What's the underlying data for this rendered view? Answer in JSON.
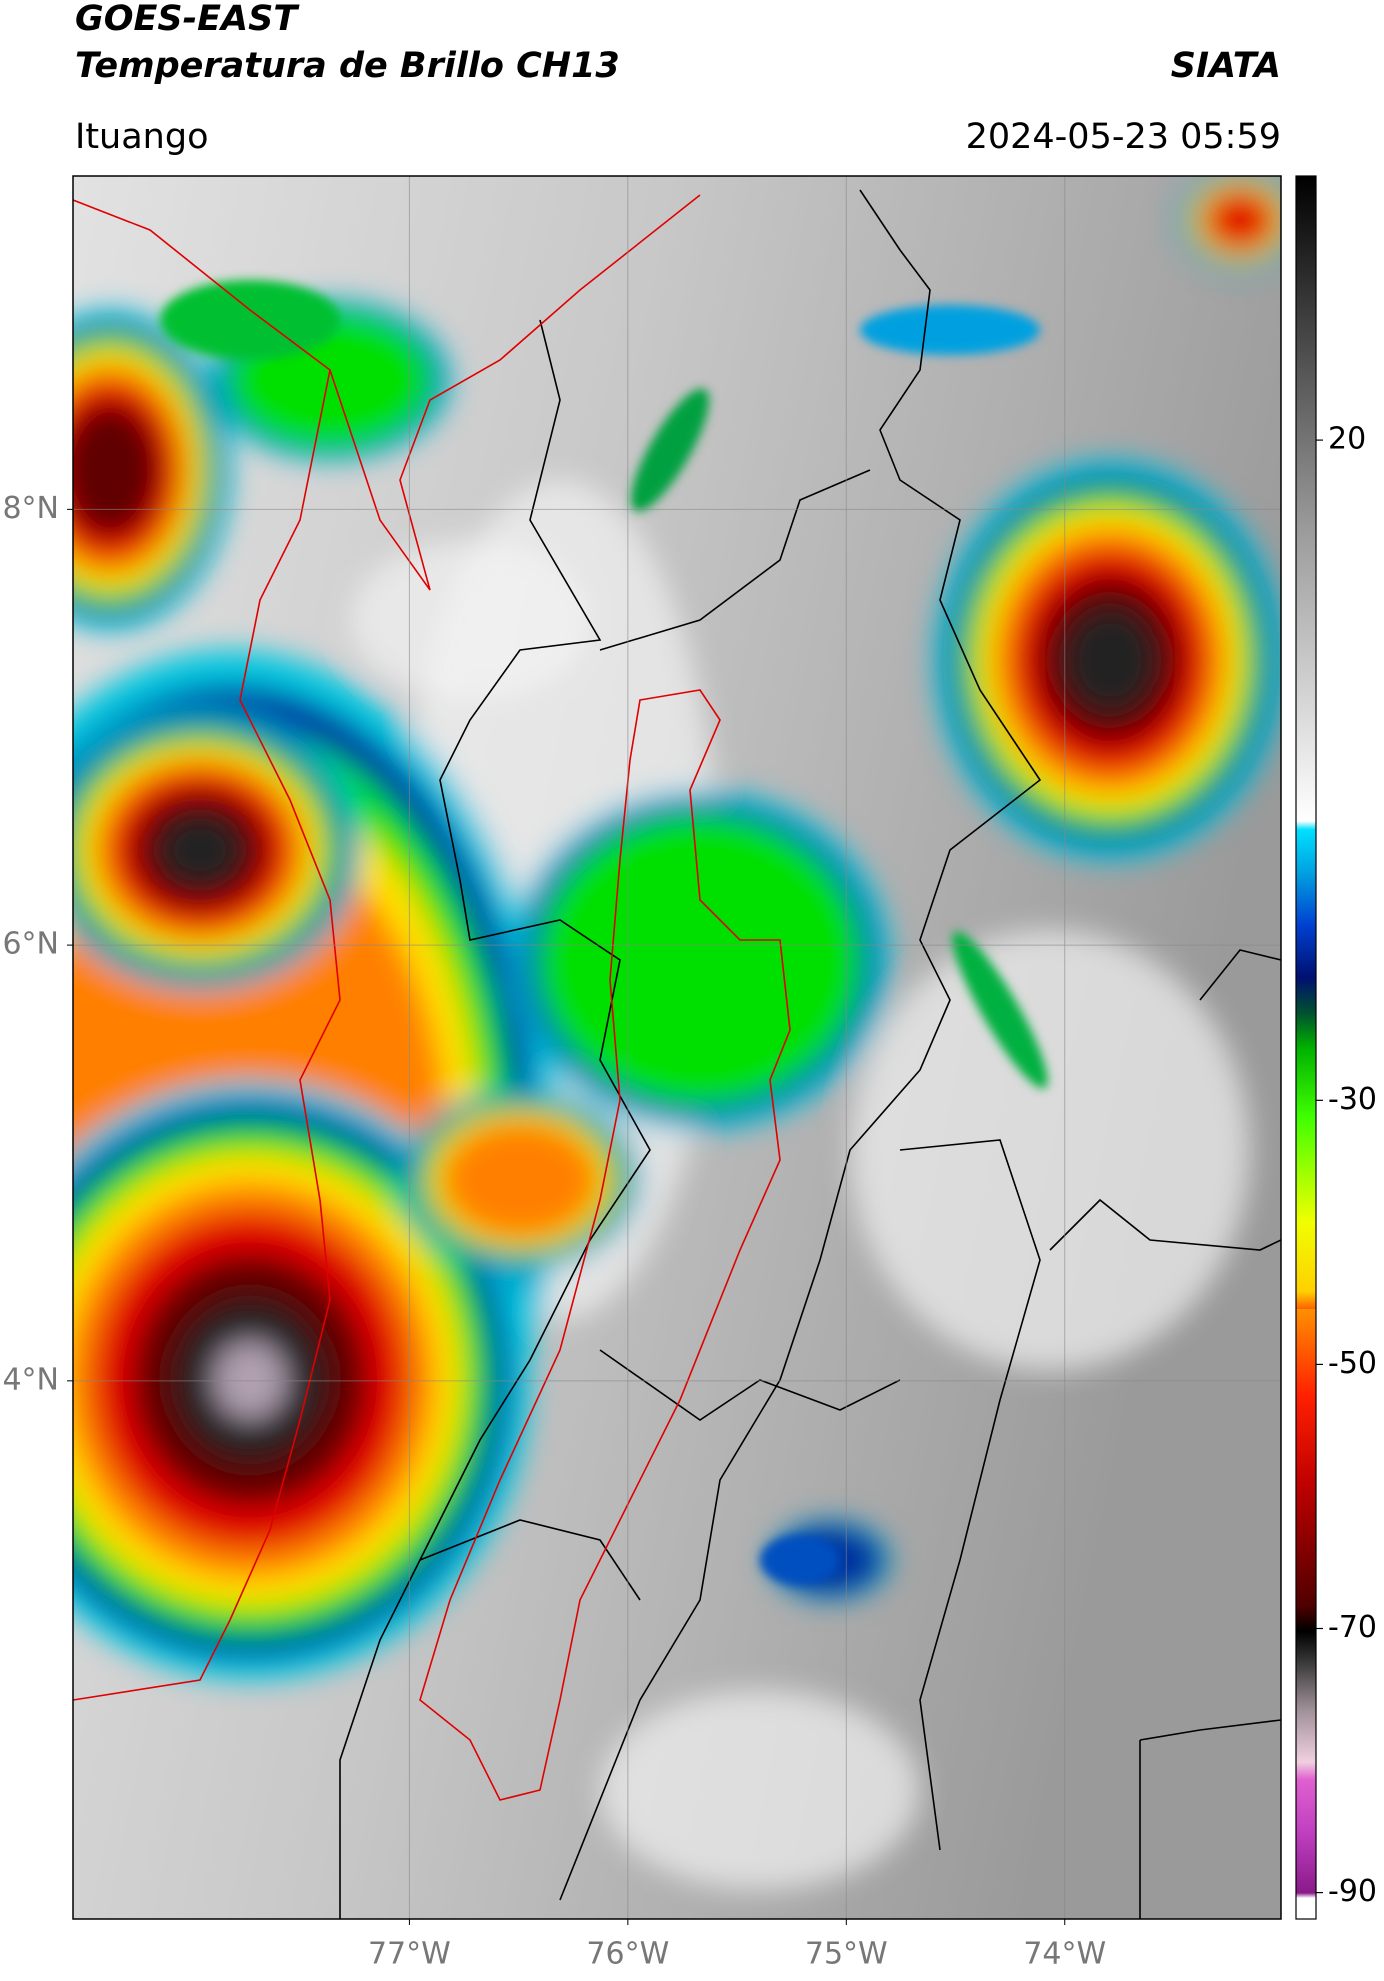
{
  "header": {
    "title": "GOES-EAST",
    "subtitle": "Temperatura de Brillo CH13",
    "source": "SIATA",
    "region": "Ituango",
    "datetime": "2024-05-23 05:59"
  },
  "map": {
    "xlim": [
      -78.54,
      -73.01
    ],
    "ylim": [
      1.53,
      9.53
    ],
    "xticks": [
      {
        "value": -77,
        "label": "77°W"
      },
      {
        "value": -76,
        "label": "76°W"
      },
      {
        "value": -75,
        "label": "75°W"
      },
      {
        "value": -74,
        "label": "74°W"
      }
    ],
    "yticks": [
      {
        "value": 8,
        "label": "8°N"
      },
      {
        "value": 6,
        "label": "6°N"
      },
      {
        "value": 4,
        "label": "4°N"
      }
    ],
    "grid": true
  },
  "colorbar": {
    "lim": [
      -92,
      40
    ],
    "ticks": [
      20,
      -30,
      -50,
      -70,
      -90
    ]
  }
}
